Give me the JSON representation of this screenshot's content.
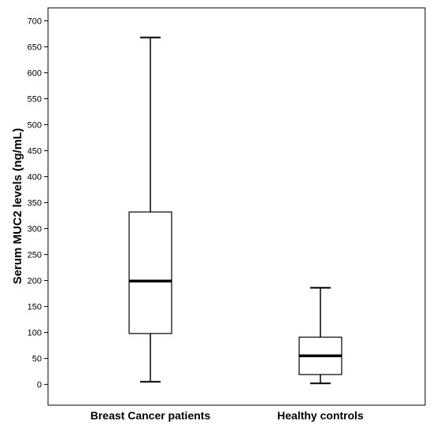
{
  "chart_data": {
    "type": "box",
    "ylabel": "Serum MUC2 levels (ng/mL)",
    "xlabel": "",
    "ylim": [
      -40,
      725
    ],
    "yticks": [
      0,
      50,
      100,
      150,
      200,
      250,
      300,
      350,
      400,
      450,
      500,
      550,
      600,
      650,
      700
    ],
    "categories": [
      "Breast Cancer patients",
      "Healthy controls"
    ],
    "boxes": [
      {
        "category": "Breast Cancer patients",
        "min": 5,
        "q1": 98,
        "median": 199,
        "q3": 332,
        "max": 668
      },
      {
        "category": "Healthy controls",
        "min": 2,
        "q1": 19,
        "median": 55,
        "q3": 91,
        "max": 186
      }
    ],
    "grid": false
  }
}
